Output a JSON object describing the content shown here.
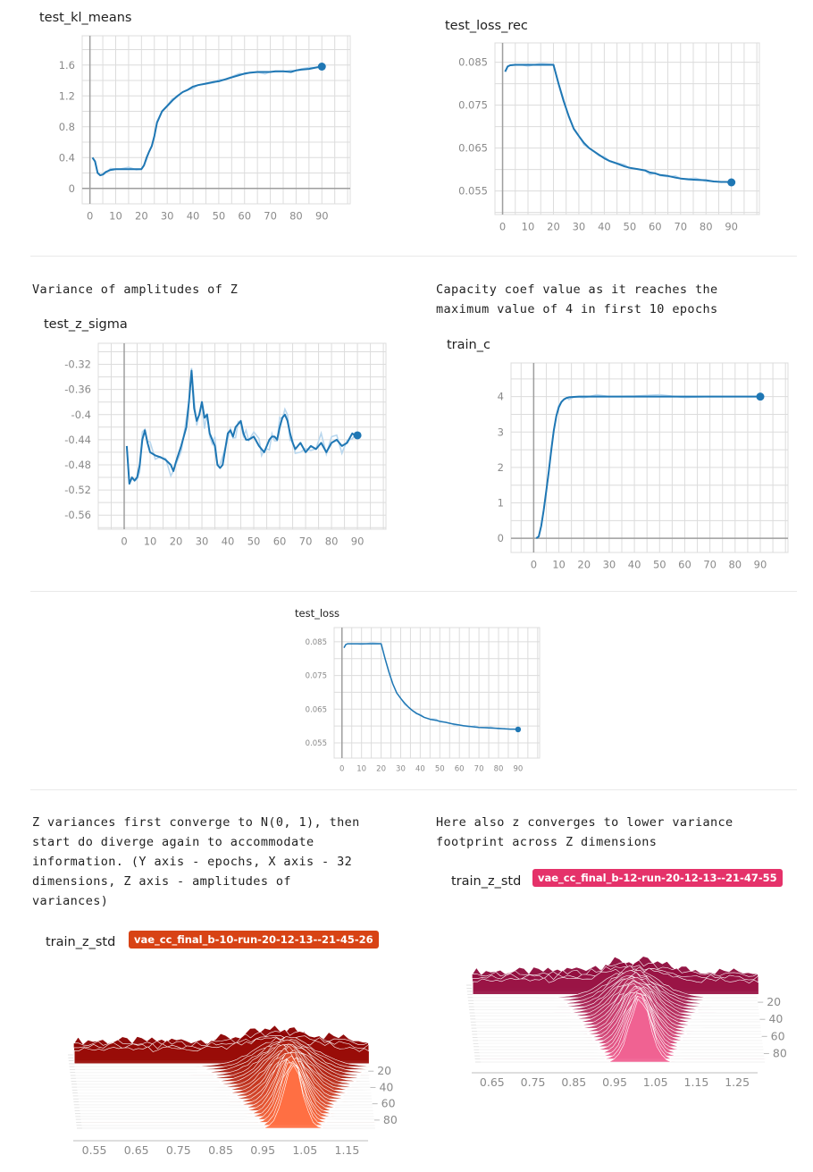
{
  "notes": {
    "note1": "Variance of amplitudes of Z",
    "note2": "Capacity coef value as it reaches the\nmaximum value of 4 in first 10 epochs",
    "note3": "Z variances first converge to N(0, 1), then\nstart do diverge again to accommodate\ninformation. (Y axis - epochs, X axis - 32\ndimensions, Z axis - amplitudes of\nvariances)",
    "note4": "Here also z converges to lower variance\nfootprint across Z dimensions"
  },
  "colors": {
    "line": "#1f77b4",
    "raw_line": "#b9d7ee",
    "grid": "#dcdcdc",
    "axis": "#9e9e9e",
    "run1_tag": "#d84315",
    "run2_tag": "#e5326a"
  },
  "chart_data": [
    {
      "id": "test_kl_means",
      "type": "line",
      "title": "test_kl_means",
      "xlim": [
        -3,
        101
      ],
      "ylim": [
        -0.2,
        1.98
      ],
      "xticks": [
        0,
        10,
        20,
        30,
        40,
        50,
        60,
        70,
        80,
        90
      ],
      "yticks": [
        0,
        0.4,
        0.8,
        1.2,
        1.6
      ],
      "ytick_labels": [
        "0",
        "0.4",
        "0.8",
        "1.2",
        "1.6"
      ],
      "series": [
        {
          "x": [
            1,
            2,
            3,
            4,
            5,
            6,
            8,
            10,
            12,
            15,
            18,
            20,
            21,
            22,
            23,
            24,
            25,
            26,
            28,
            30,
            32,
            34,
            36,
            38,
            40,
            42,
            45,
            48,
            50,
            52,
            55,
            58,
            60,
            62,
            65,
            68,
            70,
            72,
            75,
            78,
            80,
            82,
            85,
            88,
            90
          ],
          "y": [
            0.4,
            0.35,
            0.2,
            0.17,
            0.18,
            0.21,
            0.24,
            0.25,
            0.25,
            0.25,
            0.25,
            0.25,
            0.3,
            0.4,
            0.48,
            0.55,
            0.68,
            0.85,
            1.0,
            1.07,
            1.14,
            1.2,
            1.25,
            1.28,
            1.32,
            1.34,
            1.36,
            1.38,
            1.39,
            1.41,
            1.44,
            1.47,
            1.49,
            1.5,
            1.51,
            1.51,
            1.51,
            1.52,
            1.52,
            1.51,
            1.53,
            1.54,
            1.55,
            1.57,
            1.58
          ],
          "marker_last": true
        }
      ]
    },
    {
      "id": "test_loss_rec",
      "type": "line",
      "title": "test_loss_rec",
      "xlim": [
        -3,
        101
      ],
      "ylim": [
        0.0495,
        0.0895
      ],
      "xticks": [
        0,
        10,
        20,
        30,
        40,
        50,
        60,
        70,
        80,
        90
      ],
      "yticks": [
        0.055,
        0.065,
        0.075,
        0.085
      ],
      "ytick_labels": [
        "0.055",
        "0.065",
        "0.075",
        "0.085"
      ],
      "series": [
        {
          "x": [
            1,
            2,
            3,
            5,
            8,
            10,
            15,
            20,
            22,
            24,
            26,
            28,
            30,
            32,
            34,
            36,
            38,
            40,
            42,
            45,
            48,
            50,
            53,
            56,
            58,
            60,
            62,
            65,
            68,
            70,
            73,
            76,
            80,
            83,
            86,
            88,
            90
          ],
          "y": [
            0.0828,
            0.084,
            0.0843,
            0.0844,
            0.0844,
            0.0844,
            0.0844,
            0.0844,
            0.08,
            0.076,
            0.0725,
            0.0695,
            0.0678,
            0.0662,
            0.065,
            0.0642,
            0.0634,
            0.0626,
            0.062,
            0.0614,
            0.0607,
            0.0604,
            0.0601,
            0.0598,
            0.0593,
            0.0591,
            0.0587,
            0.0585,
            0.0581,
            0.0579,
            0.0577,
            0.0576,
            0.0575,
            0.0572,
            0.0571,
            0.0571,
            0.057
          ],
          "marker_last": true
        }
      ]
    },
    {
      "id": "test_z_sigma",
      "type": "line",
      "title": "test_z_sigma",
      "xlim": [
        -10,
        101
      ],
      "ylim": [
        -0.5825,
        -0.2865
      ],
      "xticks": [
        0,
        10,
        20,
        30,
        40,
        50,
        60,
        70,
        80,
        90
      ],
      "yticks": [
        -0.32,
        -0.36,
        -0.4,
        -0.44,
        -0.48,
        -0.52,
        -0.56
      ],
      "ytick_labels": [
        "-0.32",
        "-0.36",
        "-0.4",
        "-0.44",
        "-0.48",
        "-0.52",
        "-0.56"
      ],
      "series": [
        {
          "x": [
            1,
            2,
            3,
            4,
            5,
            6,
            7,
            8,
            9,
            10,
            12,
            14,
            16,
            18,
            19,
            20,
            22,
            24,
            25,
            26,
            27,
            28,
            29,
            30,
            31,
            32,
            33,
            34,
            35,
            36,
            37,
            38,
            40,
            41,
            42,
            43,
            44,
            45,
            46,
            47,
            48,
            50,
            52,
            53,
            54,
            55,
            56,
            57,
            58,
            59,
            60,
            61,
            62,
            63,
            64,
            65,
            66,
            68,
            70,
            72,
            74,
            76,
            78,
            80,
            82,
            84,
            86,
            88,
            89,
            90
          ],
          "y": [
            -0.45,
            -0.51,
            -0.5,
            -0.505,
            -0.5,
            -0.48,
            -0.44,
            -0.425,
            -0.445,
            -0.46,
            -0.465,
            -0.468,
            -0.472,
            -0.48,
            -0.49,
            -0.475,
            -0.45,
            -0.42,
            -0.38,
            -0.33,
            -0.39,
            -0.41,
            -0.4,
            -0.38,
            -0.405,
            -0.4,
            -0.43,
            -0.44,
            -0.45,
            -0.48,
            -0.485,
            -0.48,
            -0.43,
            -0.425,
            -0.435,
            -0.42,
            -0.415,
            -0.41,
            -0.43,
            -0.44,
            -0.44,
            -0.435,
            -0.45,
            -0.455,
            -0.46,
            -0.45,
            -0.44,
            -0.435,
            -0.435,
            -0.44,
            -0.42,
            -0.405,
            -0.4,
            -0.41,
            -0.43,
            -0.445,
            -0.455,
            -0.445,
            -0.46,
            -0.45,
            -0.455,
            -0.445,
            -0.46,
            -0.445,
            -0.44,
            -0.45,
            -0.445,
            -0.43,
            -0.433,
            -0.433
          ],
          "marker_last": true
        }
      ]
    },
    {
      "id": "train_c",
      "type": "line",
      "title": "train_c",
      "xlim": [
        -9,
        101
      ],
      "ylim": [
        -0.4,
        4.95
      ],
      "xticks": [
        0,
        10,
        20,
        30,
        40,
        50,
        60,
        70,
        80,
        90
      ],
      "yticks": [
        0,
        1,
        2,
        3,
        4
      ],
      "ytick_labels": [
        "0",
        "1",
        "2",
        "3",
        "4"
      ],
      "series": [
        {
          "x": [
            1,
            2,
            3,
            4,
            5,
            6,
            7,
            8,
            9,
            10,
            11,
            12,
            13,
            14,
            16,
            18,
            20,
            25,
            30,
            40,
            50,
            60,
            70,
            80,
            90
          ],
          "y": [
            0.0,
            0.05,
            0.35,
            0.8,
            1.35,
            1.9,
            2.5,
            3.05,
            3.45,
            3.7,
            3.85,
            3.92,
            3.96,
            3.98,
            3.99,
            4.0,
            4.0,
            4.0,
            4.0,
            4.0,
            4.0,
            4.0,
            4.0,
            4.0,
            4.0
          ],
          "marker_last": true
        }
      ]
    },
    {
      "id": "test_loss",
      "type": "line",
      "title": "test_loss",
      "xlim": [
        -4,
        101
      ],
      "ylim": [
        0.0505,
        0.0892
      ],
      "xticks": [
        0,
        10,
        20,
        30,
        40,
        50,
        60,
        70,
        80,
        90
      ],
      "yticks": [
        0.055,
        0.065,
        0.075,
        0.085
      ],
      "ytick_labels": [
        "0.055",
        "0.065",
        "0.075",
        "0.085"
      ],
      "series": [
        {
          "x": [
            1,
            2,
            3,
            5,
            8,
            10,
            15,
            20,
            22,
            24,
            26,
            28,
            30,
            32,
            34,
            36,
            38,
            40,
            42,
            45,
            48,
            50,
            53,
            56,
            58,
            60,
            62,
            65,
            68,
            70,
            73,
            76,
            80,
            83,
            86,
            88,
            90
          ],
          "y": [
            0.0832,
            0.0842,
            0.0844,
            0.0844,
            0.0844,
            0.0844,
            0.0844,
            0.0844,
            0.08,
            0.076,
            0.0725,
            0.0698,
            0.0682,
            0.0668,
            0.0656,
            0.0646,
            0.0638,
            0.0632,
            0.0626,
            0.062,
            0.0617,
            0.0614,
            0.0611,
            0.0607,
            0.0605,
            0.0603,
            0.0601,
            0.0599,
            0.0597,
            0.0596,
            0.0595,
            0.0594,
            0.0593,
            0.0592,
            0.0591,
            0.0591,
            0.059
          ],
          "marker_last": true
        }
      ]
    },
    {
      "id": "train_z_std_run1",
      "type": "area",
      "title": "train_z_std",
      "run_tag": "vae_cc_final_b-10-run-20-12-13--21-45-26",
      "xlim": [
        0.5,
        1.2
      ],
      "xticks": [
        0.55,
        0.65,
        0.75,
        0.85,
        0.95,
        1.05,
        1.15
      ],
      "xtick_labels": [
        "0.55",
        "0.65",
        "0.75",
        "0.85",
        "0.95",
        "1.05",
        "1.15"
      ],
      "yticks": [
        20,
        40,
        60,
        80
      ],
      "ytick_labels": [
        "20",
        "40",
        "60",
        "80"
      ],
      "ylim": [
        0,
        90
      ],
      "center": 1.0,
      "spread_early": 0.28,
      "spread_late": 0.07,
      "peak": 1.0,
      "color_early": "#8b0000",
      "color_late": "#ff7043"
    },
    {
      "id": "train_z_std_run2",
      "type": "area",
      "title": "train_z_std",
      "run_tag": "vae_cc_final_b-12-run-20-12-13--21-47-55",
      "xlim": [
        0.6,
        1.3
      ],
      "xticks": [
        0.65,
        0.75,
        0.85,
        0.95,
        1.05,
        1.15,
        1.25
      ],
      "xtick_labels": [
        "0.65",
        "0.75",
        "0.85",
        "0.95",
        "1.05",
        "1.15",
        "1.25"
      ],
      "yticks": [
        20,
        40,
        60,
        80
      ],
      "ytick_labels": [
        "20",
        "40",
        "60",
        "80"
      ],
      "ylim": [
        0,
        90
      ],
      "center": 0.99,
      "spread_early": 0.25,
      "spread_late": 0.08,
      "peak": 1.0,
      "color_early": "#8e0b3c",
      "color_late": "#f06292"
    }
  ]
}
